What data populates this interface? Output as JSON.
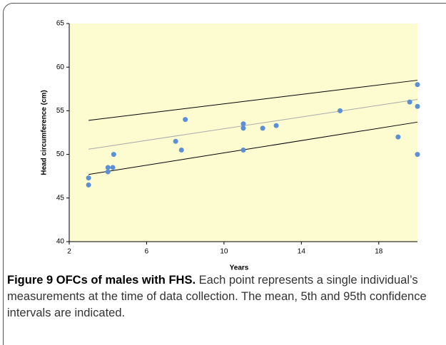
{
  "chart_data": {
    "type": "scatter",
    "xlabel": "Years",
    "ylabel": "Head circumference (cm)",
    "xlim": [
      2,
      20
    ],
    "ylim": [
      40,
      65
    ],
    "xticks": [
      2,
      6,
      10,
      14,
      18
    ],
    "yticks": [
      40,
      45,
      50,
      55,
      60,
      65
    ],
    "background": "#fdfbd0",
    "point_color": "#5b8fd6",
    "points": {
      "x": [
        3,
        3,
        4,
        4,
        4.25,
        4.3,
        7.5,
        7.8,
        8,
        11,
        11,
        11,
        12,
        12.7,
        16,
        19,
        19.6,
        20,
        20,
        20
      ],
      "y": [
        47.3,
        46.5,
        48.5,
        48.0,
        48.5,
        50.0,
        51.5,
        50.5,
        54.0,
        53.5,
        53.0,
        50.5,
        53.0,
        53.3,
        55.0,
        52.0,
        56.0,
        58.0,
        55.5,
        50.0
      ]
    },
    "lines": [
      {
        "x": [
          3,
          20
        ],
        "y": [
          53.9,
          58.5
        ],
        "color": "#000000"
      },
      {
        "x": [
          3,
          20
        ],
        "y": [
          50.6,
          56.3
        ],
        "color": "#aaaaaa"
      },
      {
        "x": [
          3,
          20
        ],
        "y": [
          47.7,
          53.7
        ],
        "color": "#000000"
      }
    ]
  },
  "caption": {
    "label": "Figure 9 OFCs of males with FHS.",
    "text": "Each point represents a single individual’s measurements at the time of data collection. The mean, 5th and 95th confidence intervals are indicated."
  }
}
